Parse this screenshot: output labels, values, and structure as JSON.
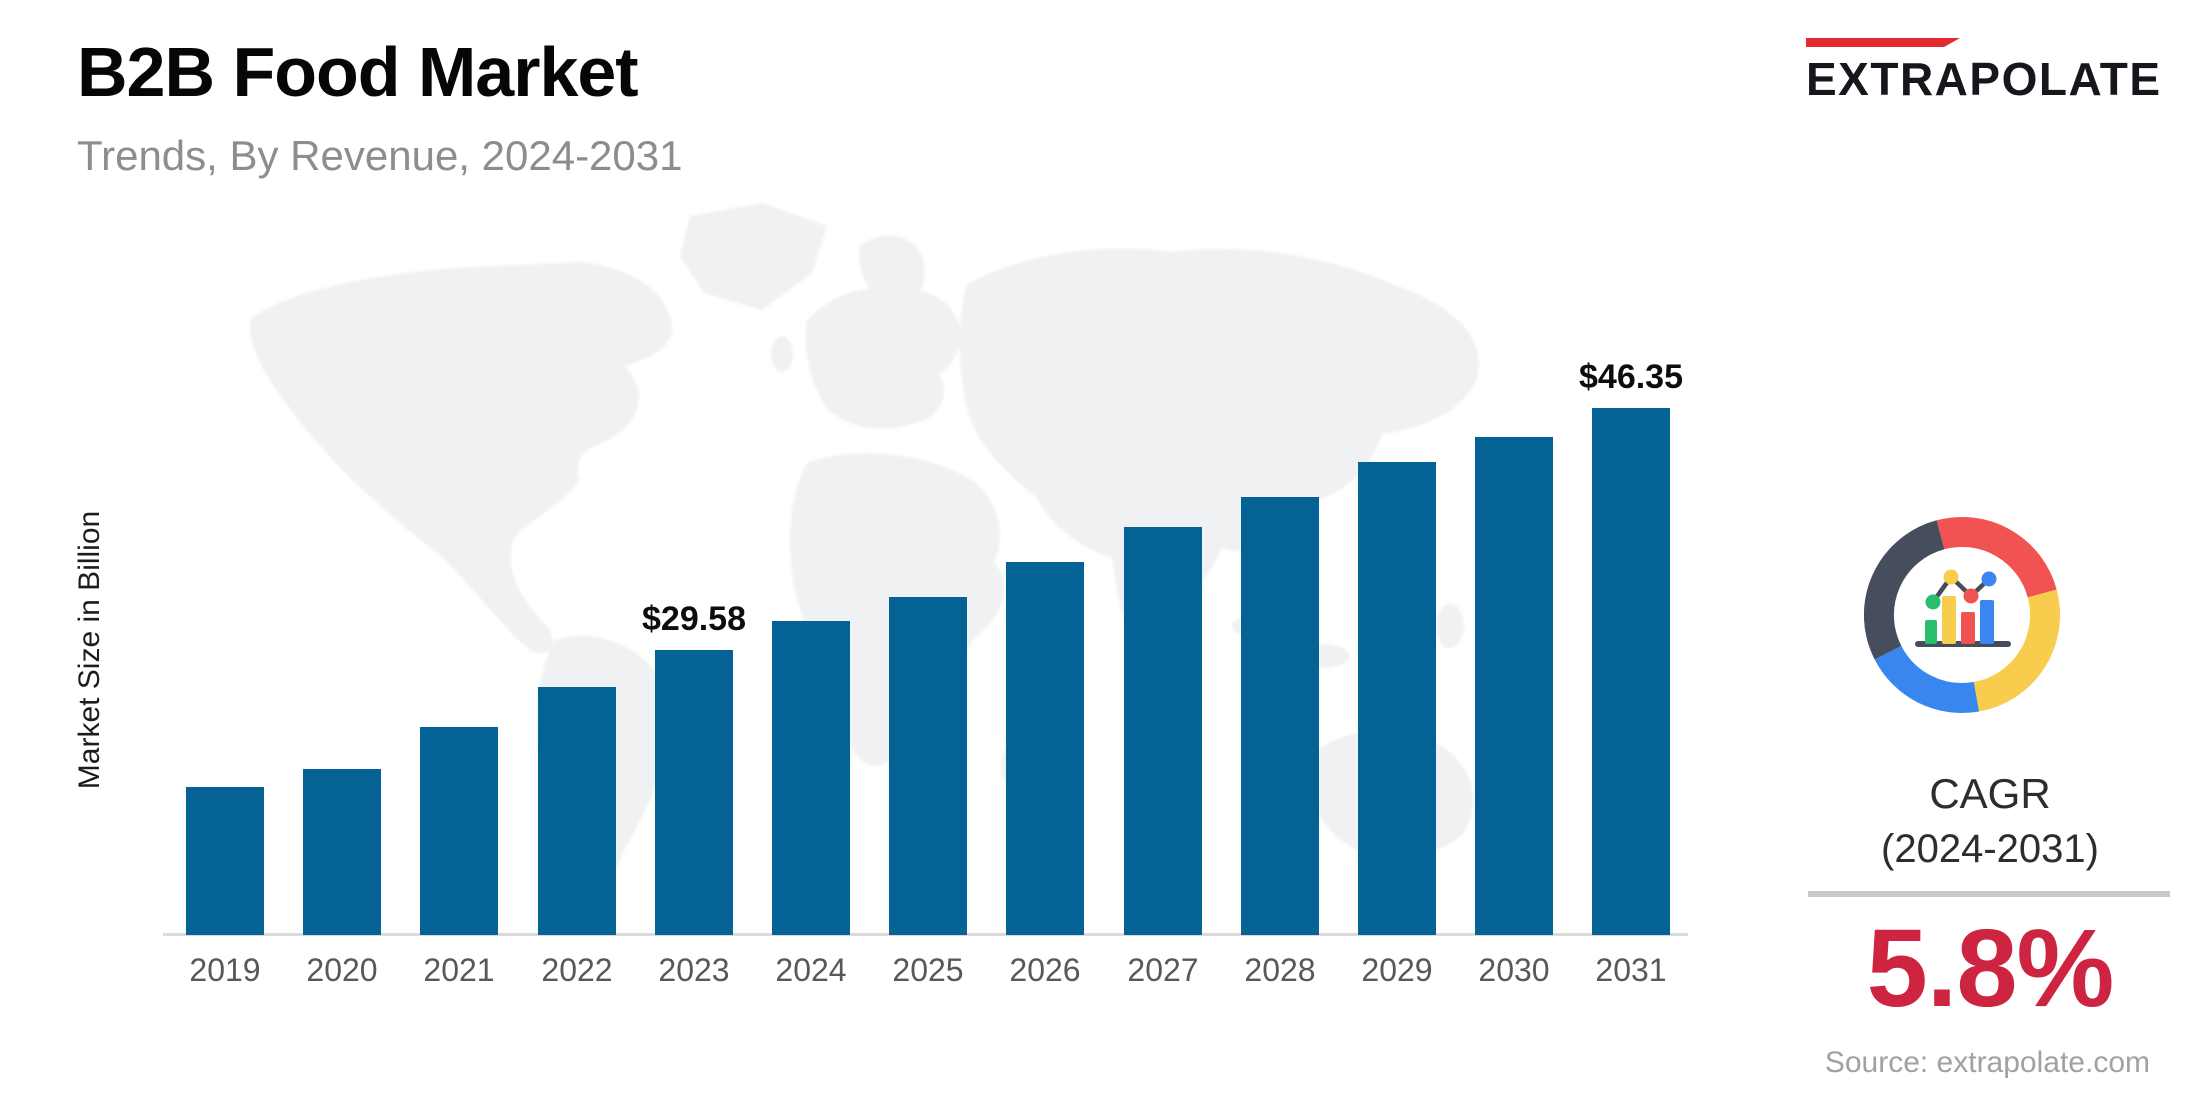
{
  "header": {
    "title": "B2B Food Market",
    "subtitle": "Trends, By Revenue, 2024-2031"
  },
  "logo": {
    "text": "EXTRAPOLATE",
    "accent_color": "#e02b2f"
  },
  "chart_data": {
    "type": "bar",
    "title": "B2B Food Market",
    "ylabel": "Market Size in Billion",
    "xlabel": "",
    "categories": [
      2019,
      2020,
      2021,
      2022,
      2023,
      2024,
      2025,
      2026,
      2027,
      2028,
      2029,
      2030,
      2031
    ],
    "values": [
      20.1,
      21.35,
      24.25,
      27.0,
      29.58,
      31.6,
      33.25,
      35.7,
      38.1,
      40.2,
      42.6,
      44.35,
      46.35
    ],
    "labeled_points": [
      {
        "year": 2023,
        "label": "$29.58"
      },
      {
        "year": 2031,
        "label": "$46.35"
      }
    ],
    "bar_color": "#046294",
    "axis_line_color": "#dadada",
    "ylim": [
      9.8,
      50
    ],
    "grid": false,
    "legend": false
  },
  "side_panel": {
    "cagr_line1": "CAGR",
    "cagr_line2": "(2024-2031)",
    "cagr_value": "5.8%",
    "value_color": "#cd2442",
    "donut_colors": {
      "dark": "#464d5d",
      "red": "#f15352",
      "yellow": "#f8cd4e",
      "blue": "#3a86f1",
      "green": "#2abd6e"
    }
  },
  "source": {
    "text": "Source: extrapolate.com"
  }
}
